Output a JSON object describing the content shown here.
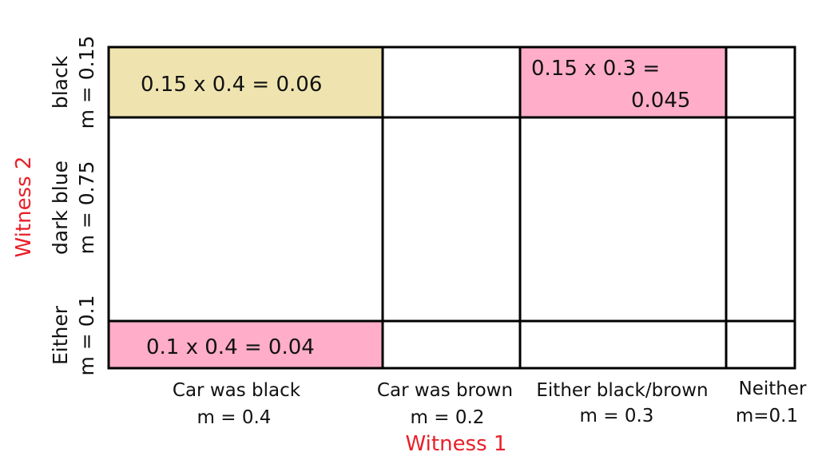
{
  "colors": {
    "beige_cell": "#efe4b0",
    "pink_cell": "#ffadc9",
    "axis_title": "#e8202a",
    "grid": "#000000"
  },
  "axes": {
    "x_title": "Witness 1",
    "y_title": "Witness 2"
  },
  "columns": [
    {
      "label": "Car was black",
      "mass": "m = 0.4"
    },
    {
      "label": "Car was brown",
      "mass": "m = 0.2"
    },
    {
      "label": "Either black/brown",
      "mass": "m = 0.3"
    },
    {
      "label": "Neither",
      "mass": "m=0.1"
    }
  ],
  "rows": [
    {
      "label": "black",
      "mass": "m = 0.15"
    },
    {
      "label": "dark blue",
      "mass": "m = 0.75"
    },
    {
      "label": "Either",
      "mass": "m = 0.1"
    }
  ],
  "cells": {
    "black_black": "0.15 x 0.4 = 0.06",
    "black_either_line1": "0.15 x 0.3 =",
    "black_either_line2": "0.045",
    "either_black": "0.1 x 0.4 = 0.04"
  }
}
